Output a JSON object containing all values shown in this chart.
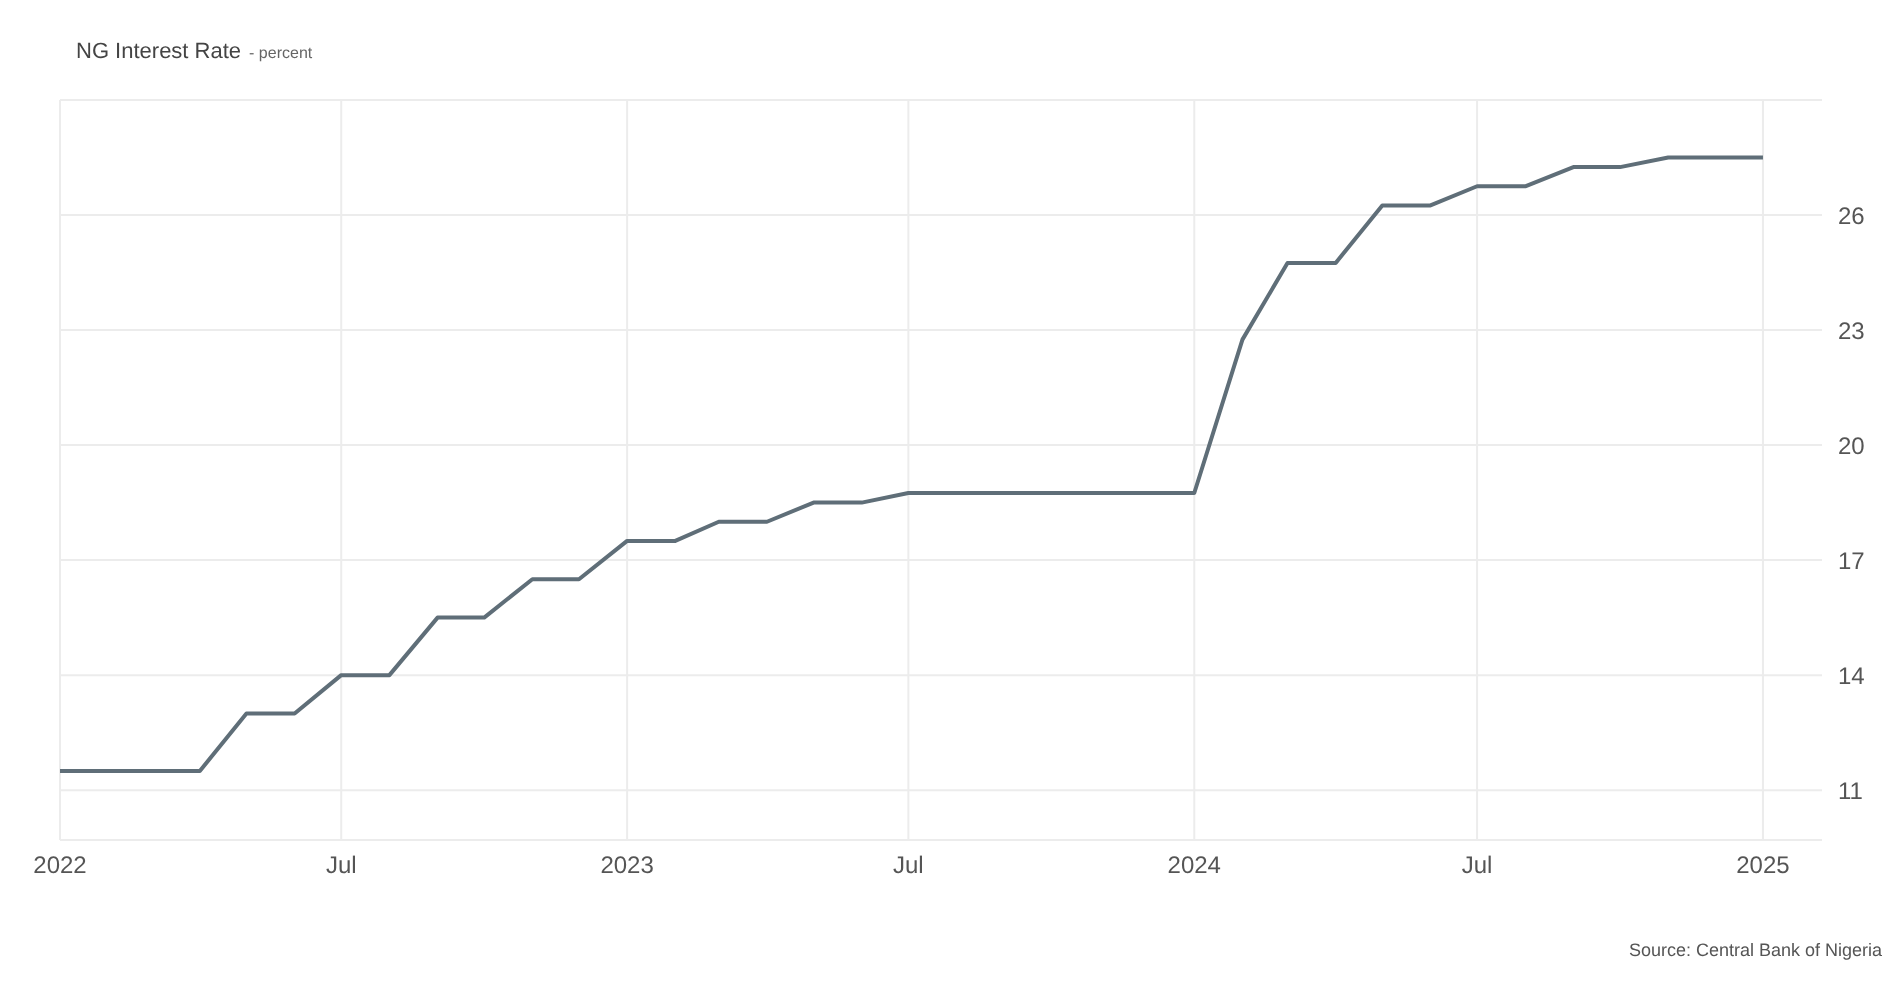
{
  "chart_data": {
    "type": "line",
    "title": "NG Interest Rate",
    "subtitle": "- percent",
    "annotations": [
      "Source: Central Bank of Nigeria"
    ],
    "x": [
      "2022-01",
      "2022-02",
      "2022-03",
      "2022-04",
      "2022-05",
      "2022-06",
      "2022-07",
      "2022-08",
      "2022-09",
      "2022-10",
      "2022-11",
      "2022-12",
      "2023-01",
      "2023-02",
      "2023-03",
      "2023-04",
      "2023-05",
      "2023-06",
      "2023-07",
      "2023-08",
      "2023-09",
      "2023-10",
      "2023-11",
      "2023-12",
      "2024-01",
      "2024-02",
      "2024-03",
      "2024-04",
      "2024-05",
      "2024-06",
      "2024-07",
      "2024-08",
      "2024-09",
      "2024-10",
      "2024-11",
      "2024-12",
      "2025-01"
    ],
    "series": [
      {
        "color": "#5f6e78",
        "values": [
          11.5,
          11.5,
          11.5,
          11.5,
          13,
          13,
          14,
          14,
          15.5,
          15.5,
          16.5,
          16.5,
          17.5,
          17.5,
          18,
          18,
          18.5,
          18.5,
          18.75,
          18.75,
          18.75,
          18.75,
          18.75,
          18.75,
          18.75,
          22.75,
          24.75,
          24.75,
          26.25,
          26.25,
          26.75,
          26.75,
          27.25,
          27.25,
          27.5,
          27.5,
          27.5
        ]
      }
    ],
    "xlim": [
      "2022-01",
      "2025-02-08"
    ],
    "xticks": [
      {
        "value": "2022-01",
        "label": "2022"
      },
      {
        "value": "2022-07",
        "label": "Jul"
      },
      {
        "value": "2023-01",
        "label": "2023"
      },
      {
        "value": "2023-07",
        "label": "Jul"
      },
      {
        "value": "2024-01",
        "label": "2024"
      },
      {
        "value": "2024-07",
        "label": "Jul"
      },
      {
        "value": "2025-01",
        "label": "2025"
      }
    ],
    "ylim": [
      9.7,
      29
    ],
    "yticks": [
      11,
      14,
      17,
      20,
      23,
      26
    ],
    "grid": true,
    "marker": "none",
    "line_style": "solid"
  }
}
